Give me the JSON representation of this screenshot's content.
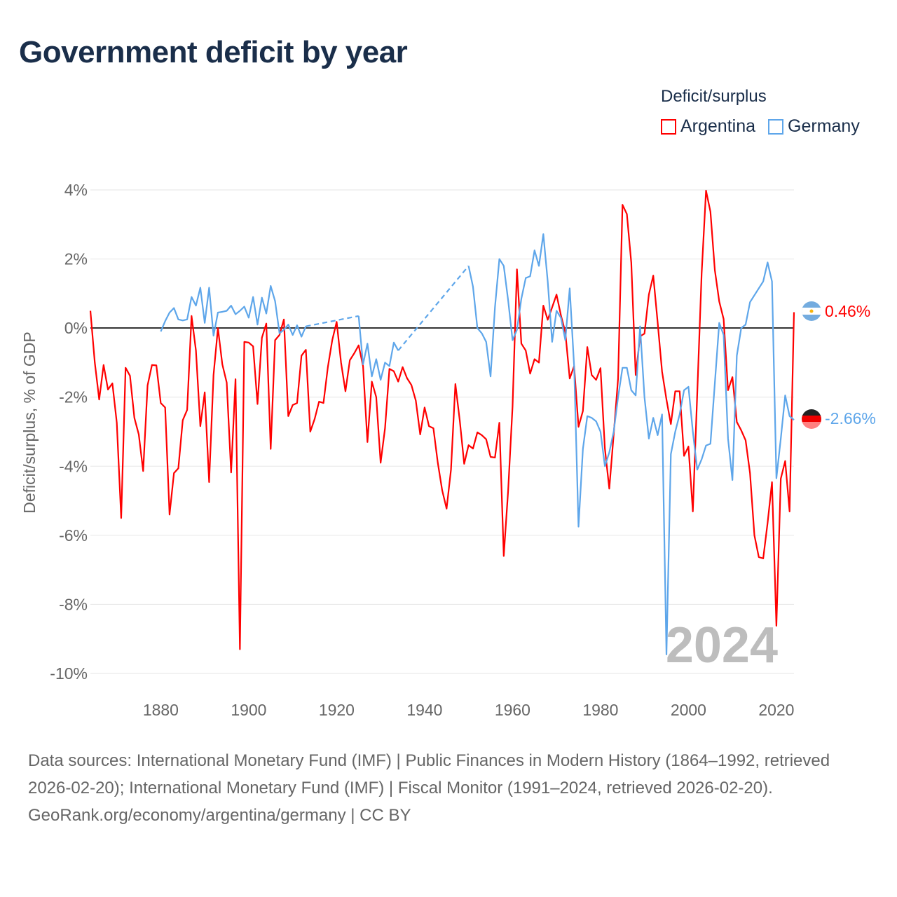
{
  "title": "Government deficit by year",
  "legend": {
    "title": "Deficit/surplus",
    "items": [
      {
        "label": "Argentina",
        "color": "#ff0000"
      },
      {
        "label": "Germany",
        "color": "#5ea6ea"
      }
    ]
  },
  "watermark_year": "2024",
  "end_labels": {
    "argentina": "0.46%",
    "germany": "-2.66%"
  },
  "footer": {
    "sources": "Data sources: International Monetary Fund (IMF) | Public Finances in Modern History (1864–1992, retrieved 2026-02-20); International Monetary Fund (IMF) | Fiscal Monitor (1991–2024, retrieved 2026-02-20).",
    "credit": "GeoRank.org/economy/argentina/germany | CC BY"
  },
  "chart_data": {
    "type": "line",
    "title": "Government deficit by year",
    "xlabel": "",
    "ylabel": "Deficit/surplus, % of GDP",
    "xlim": [
      1864,
      2024
    ],
    "ylim": [
      -10,
      4
    ],
    "x_ticks": [
      "1880",
      "1900",
      "1920",
      "1940",
      "1960",
      "1980",
      "2000",
      "2020"
    ],
    "x_tick_values": [
      1880,
      1900,
      1920,
      1940,
      1960,
      1980,
      2000,
      2020
    ],
    "y_ticks": [
      "4%",
      "2%",
      "0%",
      "-2%",
      "-4%",
      "-6%",
      "-8%",
      "-10%"
    ],
    "y_tick_values": [
      4,
      2,
      0,
      -2,
      -4,
      -6,
      -8,
      -10
    ],
    "grid": true,
    "legend_position": "top-right",
    "series": [
      {
        "name": "Argentina",
        "color": "#ff0000",
        "start_year": 1864,
        "values": [
          0.5,
          -1.0,
          -2.07,
          -1.07,
          -1.78,
          -1.6,
          -2.74,
          -5.5,
          -1.15,
          -1.38,
          -2.6,
          -3.08,
          -4.14,
          -1.66,
          -1.07,
          -1.08,
          -2.17,
          -2.3,
          -5.4,
          -4.2,
          -4.06,
          -2.67,
          -2.37,
          0.35,
          -0.65,
          -2.84,
          -1.86,
          -4.46,
          -1.36,
          0.0,
          -1.05,
          -1.58,
          -4.18,
          -1.48,
          -9.3,
          -0.4,
          -0.42,
          -0.53,
          -2.2,
          -0.28,
          0.13,
          -3.5,
          -0.35,
          -0.2,
          0.25,
          -2.55,
          -2.23,
          -2.17,
          -0.8,
          -0.63,
          -3.0,
          -2.63,
          -2.13,
          -2.17,
          -1.13,
          -0.35,
          0.18,
          -1.0,
          -1.83,
          -0.93,
          -0.73,
          -0.5,
          -1.1,
          -3.3,
          -1.55,
          -2.0,
          -3.9,
          -2.9,
          -1.18,
          -1.25,
          -1.55,
          -1.13,
          -1.45,
          -1.65,
          -2.1,
          -3.08,
          -2.3,
          -2.84,
          -2.9,
          -3.9,
          -4.7,
          -5.23,
          -4.1,
          -1.62,
          -2.68,
          -3.93,
          -3.39,
          -3.49,
          -3.02,
          -3.1,
          -3.22,
          -3.73,
          -3.75,
          -2.74,
          -6.6,
          -4.7,
          -2.27,
          1.7,
          -0.45,
          -0.65,
          -1.32,
          -0.9,
          -1.0,
          0.65,
          0.24,
          0.6,
          0.97,
          0.37,
          -0.12,
          -1.46,
          -1.1,
          -2.86,
          -2.4,
          -0.55,
          -1.36,
          -1.5,
          -1.16,
          -3.49,
          -4.65,
          -3.08,
          -1.46,
          3.57,
          3.3,
          1.89,
          -1.36,
          -0.24,
          -0.16,
          0.97,
          1.52,
          0.16,
          -1.26,
          -2.07,
          -2.78,
          -1.83,
          -1.83,
          -3.7,
          -3.43,
          -5.31,
          -1.9,
          1.58,
          3.98,
          3.37,
          1.68,
          0.77,
          0.26,
          -1.8,
          -1.42,
          -2.72,
          -2.96,
          -3.25,
          -4.2,
          -6.0,
          -6.63,
          -6.67,
          -5.64,
          -4.46,
          -8.62,
          -4.36,
          -3.85,
          -5.31,
          0.46
        ]
      },
      {
        "name": "Germany",
        "color": "#5ea6ea",
        "start_year": 1880,
        "values": [
          -0.1,
          0.2,
          0.45,
          0.58,
          0.25,
          0.22,
          0.25,
          0.9,
          0.65,
          1.17,
          0.15,
          1.17,
          -0.22,
          0.45,
          0.47,
          0.5,
          0.65,
          0.4,
          0.5,
          0.62,
          0.3,
          0.9,
          0.1,
          0.88,
          0.42,
          1.22,
          0.78,
          -0.15,
          -0.05,
          0.1,
          -0.2,
          0.08,
          -0.25,
          0.05,
          null,
          null,
          null,
          null,
          null,
          null,
          null,
          null,
          null,
          null,
          null,
          0.35,
          -1.05,
          -0.45,
          -1.4,
          -0.9,
          -1.5,
          -1.0,
          -1.1,
          -0.42,
          -0.65,
          null,
          null,
          null,
          null,
          null,
          null,
          null,
          null,
          null,
          null,
          null,
          null,
          null,
          null,
          null,
          1.8,
          1.2,
          0.0,
          -0.15,
          -0.4,
          -1.4,
          0.6,
          2.0,
          1.8,
          0.8,
          -0.35,
          -0.05,
          0.85,
          1.45,
          1.5,
          2.25,
          1.8,
          2.72,
          1.35,
          -0.4,
          0.5,
          0.3,
          -0.35,
          1.15,
          -1.1,
          -5.75,
          -3.5,
          -2.55,
          -2.6,
          -2.7,
          -3.0,
          -4.0,
          -3.6,
          -3.0,
          -2.0,
          -1.15,
          -1.15,
          -1.8,
          -1.95,
          0.05,
          -2.0,
          -3.2,
          -2.6,
          -3.1,
          -2.5,
          -9.45,
          -3.65,
          -3.0,
          -2.5,
          -1.8,
          -1.7,
          -3.0,
          -4.1,
          -3.8,
          -3.4,
          -3.35,
          -1.6,
          0.15,
          -0.2,
          -3.2,
          -4.4,
          -0.8,
          0.0,
          0.1,
          0.75,
          0.95,
          1.15,
          1.35,
          1.9,
          1.35,
          -4.35,
          -3.2,
          -1.95,
          -2.55,
          -2.66
        ]
      }
    ]
  }
}
